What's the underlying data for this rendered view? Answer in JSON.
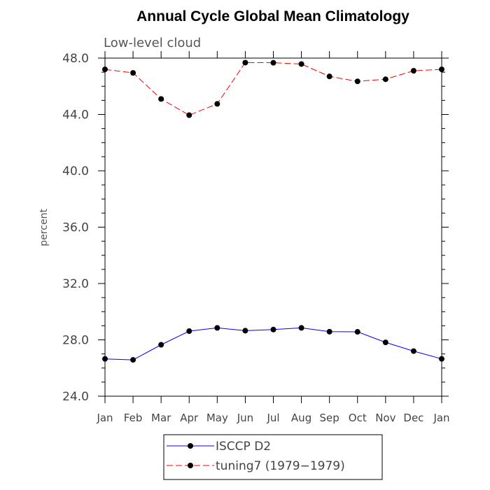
{
  "chart_data": {
    "type": "line",
    "title": "Annual Cycle Global Mean Climatology",
    "subtitle": "Low-level cloud",
    "xlabel": "",
    "ylabel": "percent",
    "categories": [
      "Jan",
      "Feb",
      "Mar",
      "Apr",
      "May",
      "Jun",
      "Jul",
      "Aug",
      "Sep",
      "Oct",
      "Nov",
      "Dec",
      "Jan"
    ],
    "ylim": [
      24.0,
      48.0
    ],
    "yticks": [
      24.0,
      28.0,
      32.0,
      36.0,
      40.0,
      44.0,
      48.0
    ],
    "ytick_labels": [
      "24.0",
      "28.0",
      "32.0",
      "36.0",
      "40.0",
      "44.0",
      "48.0"
    ],
    "series": [
      {
        "name": "ISCCP D2",
        "color": "#0000ff",
        "dash": "solid",
        "values": [
          26.65,
          26.58,
          27.65,
          28.62,
          28.85,
          28.65,
          28.73,
          28.85,
          28.58,
          28.57,
          27.82,
          27.2,
          26.65
        ]
      },
      {
        "name": "tuning7 (1979−1979)",
        "color": "#ff0000",
        "dash": "dashed",
        "values": [
          47.2,
          46.95,
          45.1,
          43.95,
          44.75,
          47.68,
          47.67,
          47.58,
          46.7,
          46.35,
          46.5,
          47.1,
          47.2
        ]
      }
    ],
    "legend_position": "bottom"
  }
}
